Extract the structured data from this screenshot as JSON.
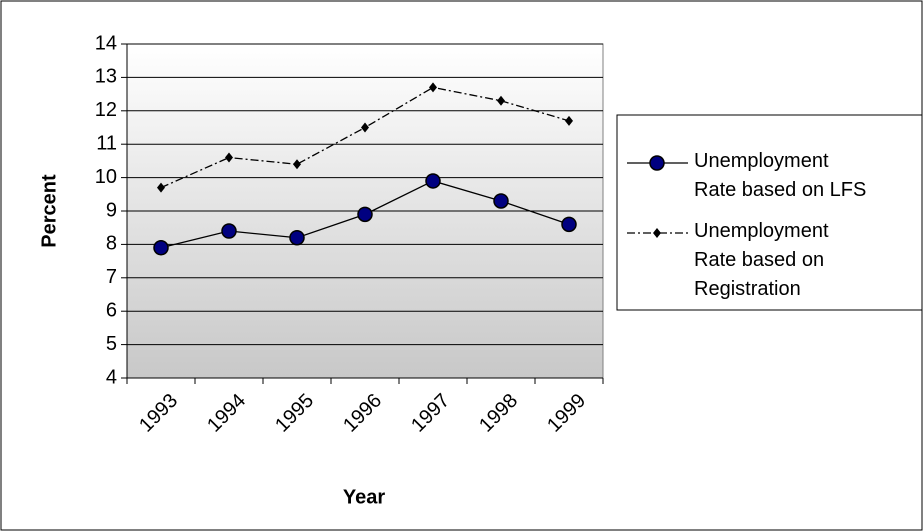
{
  "chart_data": {
    "type": "line",
    "x_label": "Year",
    "y_label": "Percent",
    "categories": [
      "1993",
      "1994",
      "1995",
      "1996",
      "1997",
      "1998",
      "1999"
    ],
    "series": [
      {
        "name": "Unemployment Rate based on LFS",
        "color": "#000000",
        "marker": "circle",
        "marker_color": "#000080",
        "line_style": "solid",
        "values": [
          7.9,
          8.4,
          8.2,
          8.9,
          9.9,
          9.3,
          8.6
        ]
      },
      {
        "name": "Unemployment Rate based on Registration",
        "color": "#000000",
        "marker": "diamond",
        "marker_color": "#000000",
        "line_style": "dashdot",
        "values": [
          9.7,
          10.6,
          10.4,
          11.5,
          12.7,
          12.3,
          11.7
        ]
      }
    ],
    "ylim": [
      4,
      14
    ],
    "yticks": [
      4,
      5,
      6,
      7,
      8,
      9,
      10,
      11,
      12,
      13,
      14
    ],
    "grid": true,
    "legend": "right"
  }
}
